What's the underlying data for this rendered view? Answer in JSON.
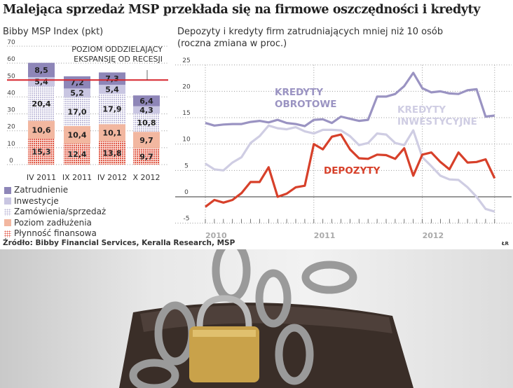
{
  "title": "Malejąca sprzedaż MSP przekłada się na firmowe oszczędności i kredyty",
  "source": "Źródło: Bibby Financial Services, Keralla Research, MSP",
  "credit": "ŁR",
  "chart_data": [
    {
      "type": "bar",
      "stacked": true,
      "title": "Bibby MSP Index (pkt)",
      "annotation": "POZIOM ODDZIELAJĄCY EKSPANSJĘ OD RECESJI",
      "threshold": 50,
      "threshold_color": "#d7262e",
      "ylim": [
        0,
        70
      ],
      "yticks": [
        0,
        10,
        20,
        30,
        40,
        50,
        60,
        70
      ],
      "categories": [
        "IV 2011",
        "IX 2011",
        "IV 2012",
        "X 2012"
      ],
      "series": [
        {
          "name": "Płynność finansowa",
          "values": [
            15.3,
            12.4,
            13.8,
            9.7
          ],
          "labels": [
            "15,3",
            "12,4",
            "13,8",
            "9,7"
          ],
          "color": "#e05a4a",
          "pattern": "dots"
        },
        {
          "name": "Poziom zadłużenia",
          "values": [
            10.6,
            10.4,
            10.1,
            9.7
          ],
          "labels": [
            "10,6",
            "10,4",
            "10,1",
            "9,7"
          ],
          "color": "#f2b7a0",
          "pattern": "solid"
        },
        {
          "name": "Zamówienia/sprzedaż",
          "values": [
            20.4,
            17.0,
            17.9,
            10.8
          ],
          "labels": [
            "20,4",
            "17,0",
            "17,9",
            "10,8"
          ],
          "color": "#b9b5d4",
          "pattern": "dots"
        },
        {
          "name": "Inwestycje",
          "values": [
            5.4,
            5.2,
            5.4,
            4.3
          ],
          "labels": [
            "5,4",
            "5,2",
            "5,4",
            "4,3"
          ],
          "color": "#c9c6e2",
          "pattern": "solid"
        },
        {
          "name": "Zatrudnienie",
          "values": [
            8.5,
            7.2,
            7.3,
            6.4
          ],
          "labels": [
            "8,5",
            "7,2",
            "7,3",
            "6,4"
          ],
          "color": "#8e86b8",
          "pattern": "solid"
        }
      ],
      "legend": [
        "Zatrudnienie",
        "Inwestycje",
        "Zamówienia/sprzedaż",
        "Poziom zadłużenia",
        "Płynność finansowa"
      ],
      "grid": true
    },
    {
      "type": "line",
      "title": "Depozyty i kredyty firm zatrudniających mniej niż 10 osób",
      "subtitle": "(roczna zmiana w proc.)",
      "ylim": [
        -5,
        25
      ],
      "yticks": [
        -5,
        0,
        5,
        10,
        15,
        20,
        25
      ],
      "xticks": [
        "2010",
        "2011",
        "2012"
      ],
      "x_start": "2010-01",
      "x_end": "2012-09",
      "x_step": "month",
      "grid": true,
      "series": [
        {
          "name": "KREDYTY OBROTOWE",
          "label_lines": [
            "KREDYTY",
            "OBROTOWE"
          ],
          "color": "#9a93c2",
          "values": [
            14,
            13.5,
            13.7,
            13.8,
            13.8,
            14.2,
            14.4,
            14.1,
            14.6,
            14.0,
            13.8,
            13.4,
            14.6,
            14.7,
            14.0,
            15.2,
            14.8,
            14.4,
            14.6,
            19.0,
            19.0,
            19.5,
            21.0,
            23.5,
            20.6,
            19.8,
            20.0,
            19.6,
            19.5,
            20.2,
            20.4,
            15.2,
            15.4
          ]
        },
        {
          "name": "KREDYTY INWESTYCYJNE",
          "label_lines": [
            "KREDYTY",
            "INWESTYCYJNE"
          ],
          "color": "#cfcde3",
          "values": [
            6.3,
            5.2,
            5.0,
            6.5,
            7.5,
            10.2,
            11.5,
            13.5,
            13.0,
            12.8,
            13.2,
            12.4,
            12.0,
            12.7,
            12.7,
            12.6,
            11.5,
            9.8,
            10.2,
            12.0,
            11.8,
            10.2,
            9.8,
            12.6,
            7.5,
            5.8,
            4.0,
            3.3,
            3.2,
            1.8,
            0.0,
            -2.3,
            -2.8
          ]
        },
        {
          "name": "DEPOZYTY",
          "label_lines": [
            "DEPOZYTY"
          ],
          "color": "#d7402a",
          "values": [
            -1.9,
            -0.6,
            -1.1,
            -0.6,
            0.7,
            2.8,
            2.8,
            5.6,
            0.0,
            0.6,
            1.8,
            2.1,
            10.0,
            9.0,
            11.4,
            11.8,
            9.0,
            7.3,
            7.2,
            8.0,
            7.9,
            7.2,
            9.2,
            4.0,
            8.0,
            8.4,
            6.6,
            5.2,
            8.4,
            6.5,
            6.6,
            7.1,
            3.5
          ]
        }
      ]
    }
  ]
}
